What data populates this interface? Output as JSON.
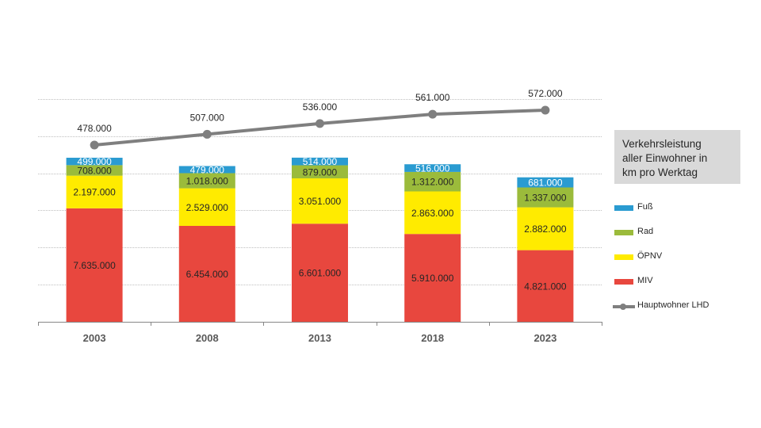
{
  "chart_data": {
    "type": "bar",
    "stacked": true,
    "title": "Verkehrsleistung aller Einwohner in km pro Werktag",
    "title_lines": [
      "Verkehrsleistung",
      "aller Einwohner  in",
      "km pro Werktag"
    ],
    "xlabel": "",
    "ylabel": "",
    "categories": [
      "2003",
      "2008",
      "2013",
      "2018",
      "2023"
    ],
    "ylim": [
      0,
      15000000
    ],
    "grid_step": 2500000,
    "grid": true,
    "legend_position": "right",
    "series": [
      {
        "name": "MIV",
        "color": "#e8473e",
        "label_color": "#262626",
        "values": [
          7635000,
          6454000,
          6601000,
          5910000,
          4821000
        ],
        "labels": [
          "7.635.000",
          "6.454.000",
          "6.601.000",
          "5.910.000",
          "4.821.000"
        ]
      },
      {
        "name": "ÖPNV",
        "color": "#ffeb00",
        "label_color": "#262626",
        "values": [
          2197000,
          2529000,
          3051000,
          2863000,
          2882000
        ],
        "labels": [
          "2.197.000",
          "2.529.000",
          "3.051.000",
          "2.863.000",
          "2.882.000"
        ]
      },
      {
        "name": "Rad",
        "color": "#9bbb3b",
        "label_color": "#262626",
        "values": [
          708000,
          1018000,
          879000,
          1312000,
          1337000
        ],
        "labels": [
          "708.000",
          "1.018.000",
          "879.000",
          "1.312.000",
          "1.337.000"
        ]
      },
      {
        "name": "Fuß",
        "color": "#2a9bd1",
        "label_color": "#ffffff",
        "values": [
          499000,
          479000,
          514000,
          516000,
          681000
        ],
        "labels": [
          "499.000",
          "479.000",
          "514.000",
          "516.000",
          "681.000"
        ]
      }
    ],
    "line_series": {
      "name": "Hauptwohner LHD",
      "color": "#7f7f7f",
      "axis": "secondary",
      "values": [
        478000,
        507000,
        536000,
        561000,
        572000
      ],
      "labels": [
        "478.000",
        "507.000",
        "536.000",
        "561.000",
        "572.000"
      ]
    },
    "legend_order": [
      "Fuß",
      "Rad",
      "ÖPNV",
      "MIV",
      "Hauptwohner LHD"
    ]
  }
}
